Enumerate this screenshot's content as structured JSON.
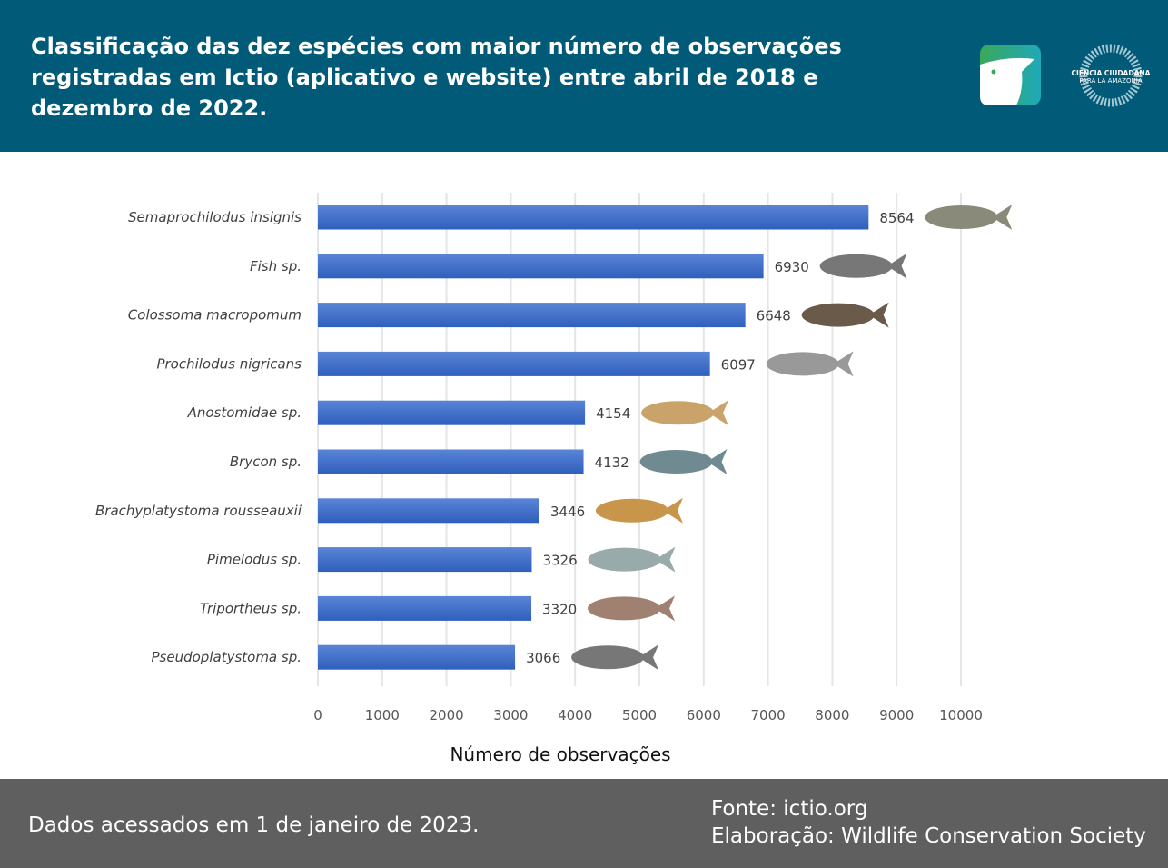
{
  "header": {
    "title": "Classificação das dez espécies com maior número de observações registradas em Ictio (aplicativo e website) entre abril de 2018 e dezembro de 2022.",
    "logos": {
      "ictio": "ictio-fish-logo",
      "ciencia": "CIENCIA CIUDADANA PARA LA AMAZONÍA"
    }
  },
  "chart_data": {
    "type": "bar",
    "orientation": "horizontal",
    "categories": [
      "Semaprochilodus insignis",
      "Fish sp.",
      "Colossoma macropomum",
      "Prochilodus nigricans",
      "Anostomidae sp.",
      "Brycon sp.",
      "Brachyplatystoma rousseauxii",
      "Pimelodus sp.",
      "Triportheus sp.",
      "Pseudoplatystoma sp."
    ],
    "values": [
      8564,
      6930,
      6648,
      6097,
      4154,
      4132,
      3446,
      3326,
      3320,
      3066
    ],
    "xlabel": "Número de observações",
    "xlim": [
      0,
      10000
    ],
    "xticks": [
      0,
      1000,
      2000,
      3000,
      4000,
      5000,
      6000,
      7000,
      8000,
      9000,
      10000
    ],
    "grid": true,
    "bar_color": "#3a6bc8"
  },
  "footer": {
    "left": "Dados acessados em 1 de janeiro de 2023.",
    "source": "Fonte: ictio.org",
    "credit": "Elaboração: Wildlife Conservation Society"
  }
}
